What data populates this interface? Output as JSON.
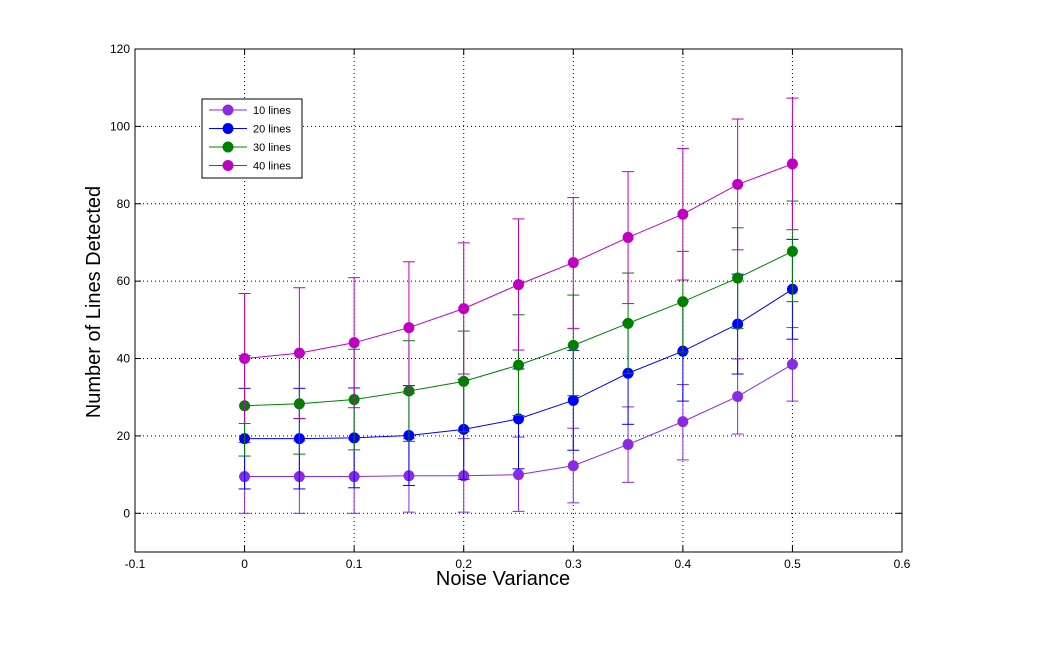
{
  "chart_data": {
    "type": "line",
    "xlabel": "Noise Variance",
    "ylabel": "Number of Lines Detected",
    "xlim": [
      -0.1,
      0.6
    ],
    "ylim": [
      -10,
      120
    ],
    "xticks": [
      "-0.1",
      "0",
      "0.1",
      "0.2",
      "0.3",
      "0.4",
      "0.5",
      "0.6"
    ],
    "yticks": [
      "0",
      "20",
      "40",
      "60",
      "80",
      "100",
      "120"
    ],
    "grid": true,
    "legend": "top-left",
    "x": [
      0,
      0.05,
      0.1,
      0.15,
      0.2,
      0.25,
      0.3,
      0.35,
      0.4,
      0.45,
      0.5
    ],
    "series": [
      {
        "name": "10 lines",
        "color": "#8a2be2",
        "values": [
          9.5,
          9.5,
          9.5,
          9.7,
          9.7,
          10,
          12.3,
          17.8,
          23.7,
          30.2,
          38.5
        ],
        "lower": [
          0,
          0,
          0,
          0.3,
          0.3,
          0.5,
          2.7,
          8,
          13.8,
          20.5,
          29
        ],
        "upper": [
          18.3,
          18.7,
          19,
          19.3,
          19.3,
          19.7,
          22,
          27.5,
          33.3,
          39.9,
          48
        ]
      },
      {
        "name": "20 lines",
        "color": "#0000ff",
        "values": [
          19.3,
          19.3,
          19.5,
          20.1,
          21.7,
          24.4,
          29.2,
          36.2,
          41.9,
          48.9,
          57.9
        ],
        "lower": [
          6.3,
          6.3,
          6.6,
          7.2,
          8.8,
          11.5,
          16.3,
          23,
          29,
          36,
          45
        ],
        "upper": [
          32.3,
          32.3,
          32.4,
          33,
          34.6,
          37.3,
          42.1,
          49.2,
          54.8,
          61.8,
          70.8
        ]
      },
      {
        "name": "30 lines",
        "color": "#008000",
        "values": [
          27.8,
          28.3,
          29.4,
          31.6,
          34.1,
          38.3,
          43.4,
          49.1,
          54.7,
          60.8,
          67.7
        ],
        "lower": [
          14.8,
          15.3,
          16.4,
          18.6,
          21.1,
          25.3,
          30.4,
          36.1,
          41.7,
          47.8,
          54.7
        ],
        "upper": [
          40.8,
          41.3,
          42.4,
          44.6,
          47.1,
          51.3,
          56.4,
          62.1,
          67.7,
          73.8,
          80.7
        ]
      },
      {
        "name": "40 lines",
        "color": "#c000c0",
        "values": [
          40,
          41.4,
          44.1,
          48,
          52.9,
          59.1,
          64.8,
          71.3,
          77.3,
          85,
          90.3
        ],
        "lower": [
          23.2,
          24.5,
          27.3,
          31,
          36,
          42.2,
          47.8,
          54.2,
          60.3,
          68.1,
          73.3
        ],
        "upper": [
          56.8,
          58.3,
          60.9,
          65,
          69.9,
          76.1,
          81.6,
          88.3,
          94.3,
          101.9,
          107.3
        ]
      }
    ]
  }
}
